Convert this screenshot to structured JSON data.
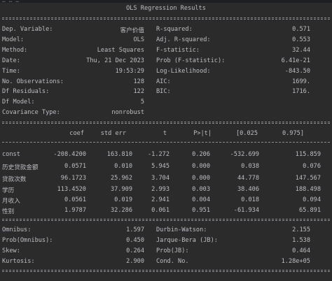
{
  "top_fragment": "… … …",
  "title": "OLS Regression Results",
  "header_rows": [
    [
      "Dep. Variable:",
      "客户价值",
      "R-squared:",
      "0.571"
    ],
    [
      "Model:",
      "OLS",
      "Adj. R-squared:",
      "0.553"
    ],
    [
      "Method:",
      "Least Squares",
      "F-statistic:",
      "32.44"
    ],
    [
      "Date:",
      "Thu, 21 Dec 2023",
      "Prob (F-statistic):",
      "6.41e-21"
    ],
    [
      "Time:",
      "19:53:29",
      "Log-Likelihood:",
      "-843.50"
    ],
    [
      "No. Observations:",
      "128",
      "AIC:",
      "1699."
    ],
    [
      "Df Residuals:",
      "122",
      "BIC:",
      "1716."
    ],
    [
      "Df Model:",
      "5",
      "",
      ""
    ],
    [
      "Covariance Type:",
      "nonrobust",
      "",
      ""
    ]
  ],
  "coef_headers": [
    "coef",
    "std err",
    "t",
    "P>|t|",
    "[0.025",
    "0.975]"
  ],
  "coef_rows": [
    [
      "const",
      "-208.4200",
      "163.810",
      "-1.272",
      "0.206",
      "-532.699",
      "115.859"
    ],
    [
      "历史贷款金额",
      "0.0571",
      "0.010",
      "5.945",
      "0.000",
      "0.038",
      "0.076"
    ],
    [
      "贷款次数",
      "96.1723",
      "25.962",
      "3.704",
      "0.000",
      "44.778",
      "147.567"
    ],
    [
      "学历",
      "113.4520",
      "37.909",
      "2.993",
      "0.003",
      "38.406",
      "188.498"
    ],
    [
      "月收入",
      "0.0561",
      "0.019",
      "2.941",
      "0.004",
      "0.018",
      "0.094"
    ],
    [
      "性别",
      "1.9787",
      "32.286",
      "0.061",
      "0.951",
      "-61.934",
      "65.891"
    ]
  ],
  "diag_rows": [
    [
      "Omnibus:",
      "1.597",
      "Durbin-Watson:",
      "2.155"
    ],
    [
      "Prob(Omnibus):",
      "0.450",
      "Jarque-Bera (JB):",
      "1.538"
    ],
    [
      "Skew:",
      "0.264",
      "Prob(JB):",
      "0.464"
    ],
    [
      "Kurtosis:",
      "2.900",
      "Cond. No.",
      "1.28e+05"
    ]
  ]
}
